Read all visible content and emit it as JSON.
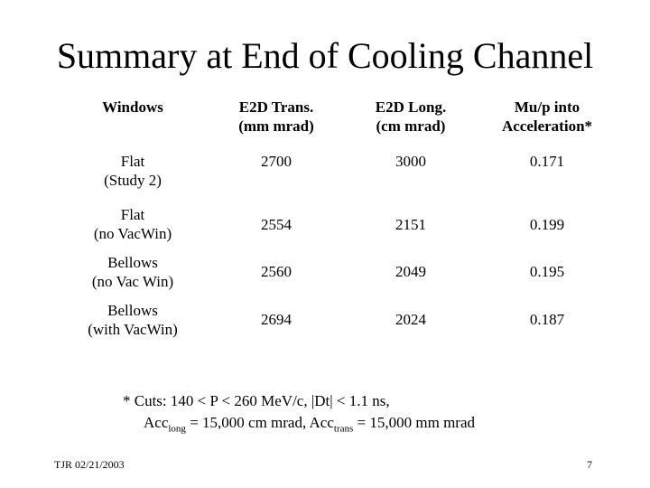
{
  "title": "Summary at End of Cooling Channel",
  "table": {
    "headers": [
      [
        "Windows"
      ],
      [
        "E2D Trans.",
        "(mm mrad)"
      ],
      [
        "E2D Long.",
        "(cm mrad)"
      ],
      [
        "Mu/p into",
        "Acceleration*"
      ]
    ],
    "rows": [
      {
        "window": [
          "Flat",
          "(Study 2)"
        ],
        "trans": "2700",
        "long": "3000",
        "mup": "0.171"
      },
      {
        "window": [
          "Flat",
          "(no VacWin)"
        ],
        "trans": "2554",
        "long": "2151",
        "mup": "0.199"
      },
      {
        "window": [
          "Bellows",
          "(no Vac Win)"
        ],
        "trans": "2560",
        "long": "2049",
        "mup": "0.195"
      },
      {
        "window": [
          "Bellows",
          "(with VacWin)"
        ],
        "trans": "2694",
        "long": "2024",
        "mup": "0.187"
      }
    ]
  },
  "footnote": {
    "line1": "*   Cuts: 140 < P < 260 MeV/c,  |Dt| < 1.1 ns,",
    "acc_prefix_1": "Acc",
    "sub_long": "long",
    "mid": " = 15,000 cm mrad,  Acc",
    "sub_trans": "trans",
    "end": " = 15,000 mm mrad"
  },
  "footer": {
    "left": "TJR  02/21/2003",
    "page": "7"
  }
}
